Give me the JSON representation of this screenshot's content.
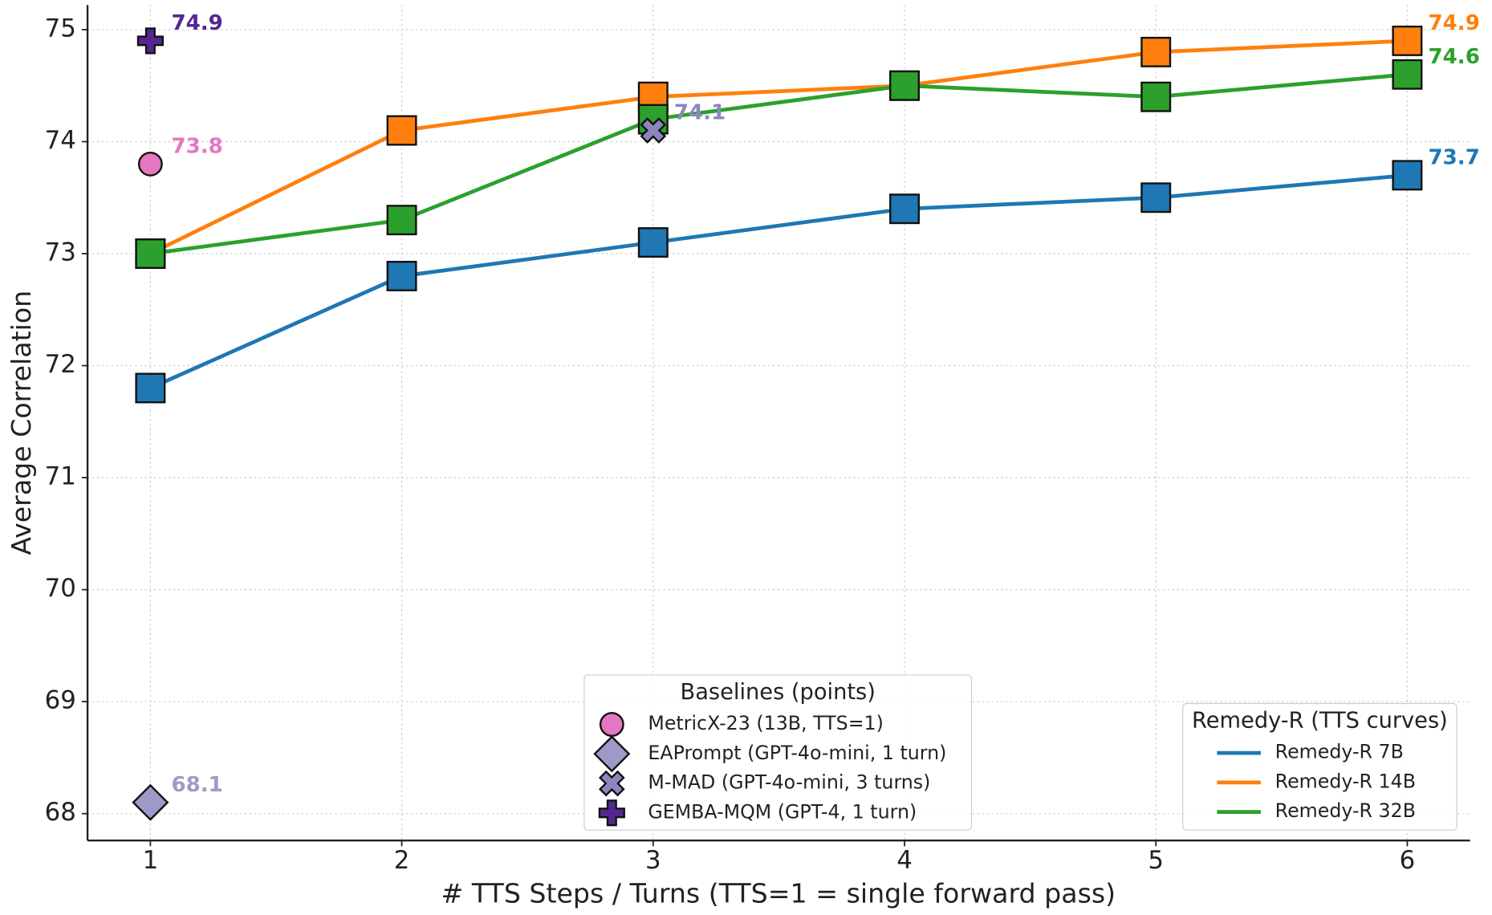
{
  "chart_data": {
    "type": "line",
    "x_label": "# TTS Steps / Turns (TTS=1 = single forward pass)",
    "y_label": "Average Correlation",
    "x": [
      1,
      2,
      3,
      4,
      5,
      6
    ],
    "xlim": [
      0.75,
      6.25
    ],
    "xticks": [
      1,
      2,
      3,
      4,
      5,
      6
    ],
    "ylim": [
      67.76,
      75.22
    ],
    "yticks": [
      68,
      69,
      70,
      71,
      72,
      73,
      74,
      75
    ],
    "grid": true,
    "legend_title": "Remedy-R (TTS curves)",
    "legend_position": "lower right",
    "series": [
      {
        "name": "Remedy-R 7B",
        "color": "#1f77b4",
        "marker": "square",
        "values": [
          71.8,
          72.8,
          73.1,
          73.4,
          73.5,
          73.7
        ]
      },
      {
        "name": "Remedy-R 14B",
        "color": "#ff7f0e",
        "marker": "square",
        "values": [
          73.0,
          74.1,
          74.4,
          74.5,
          74.8,
          74.9
        ]
      },
      {
        "name": "Remedy-R 32B",
        "color": "#2ca02c",
        "marker": "square",
        "values": [
          73.0,
          73.3,
          74.2,
          74.5,
          74.4,
          74.6
        ]
      }
    ],
    "end_labels": true,
    "baselines_title": "Baselines (points)",
    "baselines_legend_position": "lower center",
    "baselines": [
      {
        "name": "MetricX-23 (13B, TTS=1)",
        "x": 1,
        "y": 73.8,
        "color": "#e377c2",
        "marker": "circle"
      },
      {
        "name": "EAPrompt (GPT-4o-mini, 1 turn)",
        "x": 1,
        "y": 68.1,
        "color": "#9e9ac8",
        "marker": "diamond"
      },
      {
        "name": "M-MAD (GPT-4o-mini, 3 turns)",
        "x": 3,
        "y": 74.1,
        "color": "#8c86c0",
        "marker": "x"
      },
      {
        "name": "GEMBA-MQM (GPT-4, 1 turn)",
        "x": 1,
        "y": 74.9,
        "color": "#54278f",
        "marker": "plus"
      }
    ]
  }
}
